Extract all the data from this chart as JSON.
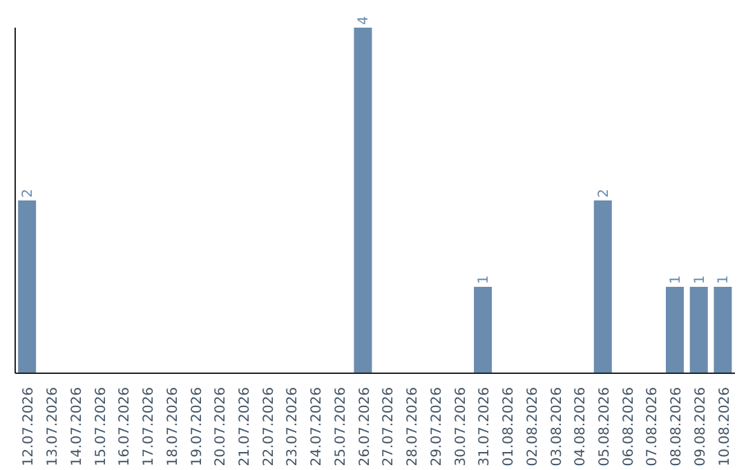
{
  "chart_data": {
    "type": "bar",
    "categories": [
      "12.07.2026",
      "13.07.2026",
      "14.07.2026",
      "15.07.2026",
      "16.07.2026",
      "17.07.2026",
      "18.07.2026",
      "19.07.2026",
      "20.07.2026",
      "21.07.2026",
      "22.07.2026",
      "23.07.2026",
      "24.07.2026",
      "25.07.2026",
      "26.07.2026",
      "27.07.2026",
      "28.07.2026",
      "29.07.2026",
      "30.07.2026",
      "31.07.2026",
      "01.08.2026",
      "02.08.2026",
      "03.08.2026",
      "04.08.2026",
      "05.08.2026",
      "06.08.2026",
      "07.08.2026",
      "08.08.2026",
      "09.08.2026",
      "10.08.2026"
    ],
    "values": [
      2,
      0,
      0,
      0,
      0,
      0,
      0,
      0,
      0,
      0,
      0,
      0,
      0,
      0,
      4,
      0,
      0,
      0,
      0,
      1,
      0,
      0,
      0,
      0,
      2,
      0,
      0,
      1,
      1,
      1
    ],
    "value_labels": [
      "2",
      null,
      null,
      null,
      null,
      null,
      null,
      null,
      null,
      null,
      null,
      null,
      null,
      null,
      "4",
      null,
      null,
      null,
      null,
      "1",
      null,
      null,
      null,
      null,
      "2",
      null,
      null,
      "1",
      "1",
      "1"
    ],
    "color": "#6a8caf",
    "grid": false,
    "legend": false
  }
}
